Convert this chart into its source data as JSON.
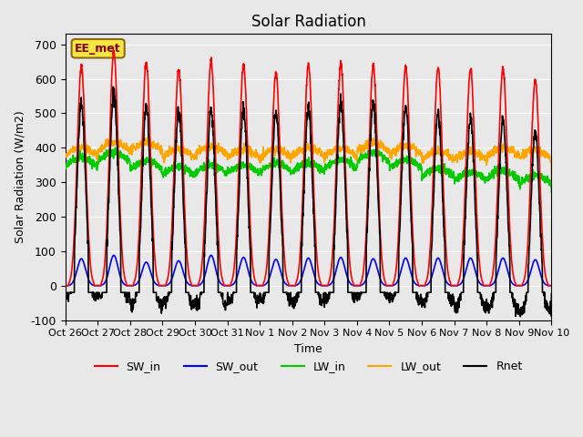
{
  "title": "Solar Radiation",
  "ylabel": "Solar Radiation (W/m2)",
  "xlabel": "Time",
  "ylim": [
    -100,
    730
  ],
  "yticks": [
    -100,
    0,
    100,
    200,
    300,
    400,
    500,
    600,
    700
  ],
  "background_color": "#e8e8e8",
  "station_label": "EE_met",
  "x_tick_labels": [
    "Oct 26",
    "Oct 27",
    "Oct 28",
    "Oct 29",
    "Oct 30",
    "Oct 31",
    "Nov 1",
    "Nov 2",
    "Nov 3",
    "Nov 4",
    "Nov 5",
    "Nov 6",
    "Nov 7",
    "Nov 8",
    "Nov 9",
    "Nov 10"
  ],
  "num_days": 15,
  "lines": {
    "SW_in": {
      "color": "#ff0000",
      "lw": 1.2
    },
    "SW_out": {
      "color": "#0000ff",
      "lw": 1.2
    },
    "LW_in": {
      "color": "#00cc00",
      "lw": 1.2
    },
    "LW_out": {
      "color": "#ffa500",
      "lw": 1.2
    },
    "Rnet": {
      "color": "#000000",
      "lw": 1.2
    }
  }
}
